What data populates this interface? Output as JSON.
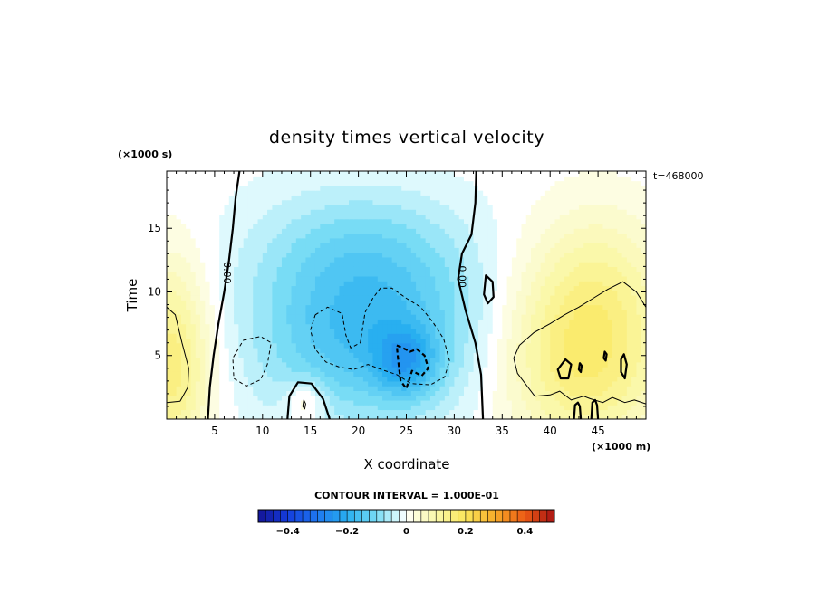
{
  "chart_data": {
    "type": "heatmap",
    "title": "density times vertical velocity",
    "xlabel": "X coordinate",
    "ylabel": "Time",
    "x_unit": "(×1000 m)",
    "y_unit": "(×1000 s)",
    "time_label": "t=468000",
    "xlim": [
      0,
      50
    ],
    "ylim": [
      0,
      19.5
    ],
    "x_ticks": [
      "5",
      "10",
      "15",
      "20",
      "25",
      "30",
      "35",
      "40",
      "45"
    ],
    "y_ticks": [
      "5",
      "10",
      "15"
    ],
    "contour_interval_text": "CONTOUR INTERVAL = 1.000E-01",
    "contour_labels": [
      {
        "text": "0.00",
        "x": 6.3,
        "y": 11.5
      },
      {
        "text": "0.00",
        "x": 30.8,
        "y": 11.2
      }
    ],
    "colorbar": {
      "range": [
        -0.5,
        0.5
      ],
      "ticks": [
        "−0.4",
        "−0.2",
        "0",
        "0.2",
        "0.4"
      ],
      "tick_values": [
        -0.4,
        -0.2,
        0,
        0.2,
        0.4
      ]
    },
    "field": {
      "background": 0.0,
      "features": [
        {
          "name": "left-warm-cell",
          "x": 0.5,
          "y": 4.5,
          "sx": 3.0,
          "sy": 5.5,
          "amp": 0.16
        },
        {
          "name": "central-updraft-deficit",
          "x": 21.0,
          "y": 7.0,
          "sx": 8.5,
          "sy": 5.0,
          "amp": -0.17
        },
        {
          "name": "central-core",
          "x": 25.0,
          "y": 4.5,
          "sx": 2.2,
          "sy": 1.8,
          "amp": -0.12
        },
        {
          "name": "upper-tongue",
          "x": 20.0,
          "y": 14.0,
          "sx": 8.0,
          "sy": 3.5,
          "amp": -0.06
        },
        {
          "name": "lower-warm-bubble",
          "x": 14.5,
          "y": 1.4,
          "sx": 1.5,
          "sy": 1.2,
          "amp": 0.08
        },
        {
          "name": "right-warm-cell",
          "x": 43.5,
          "y": 5.0,
          "sx": 6.0,
          "sy": 5.0,
          "amp": 0.17
        },
        {
          "name": "right-upper-lobe",
          "x": 45.0,
          "y": 12.0,
          "sx": 5.0,
          "sy": 4.0,
          "amp": 0.06
        }
      ]
    },
    "contours": [
      {
        "name": "zero-contour-left",
        "value": 0.0,
        "style": "solid-thick",
        "points": [
          [
            7.6,
            19.5
          ],
          [
            7.2,
            17.5
          ],
          [
            6.9,
            15.0
          ],
          [
            6.5,
            12.5
          ],
          [
            6.0,
            10.0
          ],
          [
            5.4,
            7.5
          ],
          [
            4.9,
            5.0
          ],
          [
            4.5,
            2.5
          ],
          [
            4.3,
            0.0
          ]
        ]
      },
      {
        "name": "zero-contour-right",
        "value": 0.0,
        "style": "solid-thick",
        "points": [
          [
            32.3,
            19.5
          ],
          [
            32.2,
            17.0
          ],
          [
            31.8,
            14.5
          ],
          [
            30.8,
            13.0
          ],
          [
            30.4,
            11.0
          ],
          [
            31.2,
            8.5
          ],
          [
            32.2,
            6.0
          ],
          [
            32.8,
            3.5
          ],
          [
            33.0,
            0.0
          ]
        ]
      },
      {
        "name": "zero-contour-bubble",
        "value": 0.0,
        "style": "solid-thick",
        "points": [
          [
            12.6,
            0.0
          ],
          [
            12.8,
            1.8
          ],
          [
            13.7,
            2.9
          ],
          [
            15.1,
            2.8
          ],
          [
            16.3,
            1.6
          ],
          [
            17.0,
            0.0
          ]
        ]
      },
      {
        "name": "zero-contour-islet",
        "value": 0.0,
        "style": "solid-thick",
        "closed": true,
        "points": [
          [
            33.3,
            11.3
          ],
          [
            34.0,
            10.8
          ],
          [
            34.1,
            9.6
          ],
          [
            33.5,
            9.1
          ],
          [
            33.1,
            9.8
          ]
        ]
      },
      {
        "name": "neg-0.1-left",
        "value": -0.1,
        "style": "dashed",
        "points": [
          [
            8.0,
            6.2
          ],
          [
            9.8,
            6.5
          ],
          [
            10.9,
            6.0
          ],
          [
            10.5,
            4.3
          ],
          [
            9.8,
            3.1
          ],
          [
            8.3,
            2.6
          ],
          [
            7.0,
            3.2
          ],
          [
            6.9,
            4.8
          ],
          [
            8.0,
            6.2
          ]
        ]
      },
      {
        "name": "neg-0.1-center",
        "value": -0.1,
        "style": "dashed",
        "points": [
          [
            15.5,
            8.2
          ],
          [
            16.8,
            8.8
          ],
          [
            18.3,
            8.3
          ],
          [
            18.7,
            6.6
          ],
          [
            19.2,
            5.6
          ],
          [
            20.2,
            6.0
          ],
          [
            20.7,
            8.4
          ],
          [
            21.5,
            9.5
          ],
          [
            22.3,
            10.3
          ],
          [
            23.5,
            10.3
          ],
          [
            25.0,
            9.5
          ],
          [
            26.5,
            8.8
          ],
          [
            27.8,
            7.6
          ],
          [
            28.9,
            6.3
          ],
          [
            29.5,
            4.6
          ],
          [
            29.0,
            3.3
          ],
          [
            27.5,
            2.7
          ],
          [
            25.5,
            2.8
          ],
          [
            24.0,
            3.5
          ],
          [
            22.4,
            3.9
          ],
          [
            21.0,
            4.3
          ],
          [
            19.5,
            3.9
          ],
          [
            18.0,
            4.1
          ],
          [
            16.6,
            4.5
          ],
          [
            15.5,
            5.5
          ],
          [
            15.0,
            7.0
          ],
          [
            15.5,
            8.2
          ]
        ]
      },
      {
        "name": "neg-0.2-core",
        "value": -0.2,
        "style": "dashed-thick",
        "points": [
          [
            24.0,
            5.8
          ],
          [
            24.9,
            5.5
          ],
          [
            25.4,
            5.3
          ],
          [
            26.1,
            5.5
          ],
          [
            26.9,
            5.0
          ],
          [
            27.3,
            4.0
          ],
          [
            26.6,
            3.4
          ],
          [
            25.6,
            3.8
          ],
          [
            25.0,
            2.4
          ],
          [
            24.4,
            3.0
          ],
          [
            24.2,
            4.3
          ],
          [
            24.0,
            5.8
          ]
        ]
      },
      {
        "name": "pos-0.1-left",
        "value": 0.1,
        "style": "solid",
        "points": [
          [
            0.0,
            8.8
          ],
          [
            0.9,
            8.2
          ],
          [
            1.6,
            6.0
          ],
          [
            2.3,
            4.0
          ],
          [
            2.2,
            2.5
          ],
          [
            1.4,
            1.4
          ],
          [
            0.0,
            1.3
          ]
        ]
      },
      {
        "name": "pos-0.1-right",
        "value": 0.1,
        "style": "solid",
        "points": [
          [
            50.0,
            8.8
          ],
          [
            49.0,
            10.0
          ],
          [
            47.6,
            10.8
          ],
          [
            46.0,
            10.2
          ],
          [
            44.5,
            9.5
          ],
          [
            43.0,
            8.8
          ],
          [
            41.5,
            8.2
          ],
          [
            40.0,
            7.5
          ],
          [
            38.3,
            6.8
          ],
          [
            36.8,
            5.8
          ],
          [
            36.2,
            4.8
          ],
          [
            36.6,
            3.6
          ],
          [
            37.6,
            2.6
          ],
          [
            38.4,
            1.8
          ],
          [
            40.0,
            1.9
          ],
          [
            41.0,
            2.2
          ],
          [
            42.2,
            1.5
          ],
          [
            43.5,
            1.8
          ],
          [
            44.2,
            1.6
          ],
          [
            45.5,
            1.3
          ],
          [
            46.5,
            1.7
          ],
          [
            47.8,
            1.3
          ],
          [
            48.8,
            1.5
          ],
          [
            50.0,
            1.2
          ]
        ]
      },
      {
        "name": "pos-0.2-islet-a",
        "value": 0.2,
        "style": "solid-thick",
        "closed": true,
        "points": [
          [
            40.8,
            3.9
          ],
          [
            41.6,
            4.7
          ],
          [
            42.2,
            4.3
          ],
          [
            41.9,
            3.2
          ],
          [
            41.1,
            3.2
          ]
        ]
      },
      {
        "name": "pos-0.2-islet-b",
        "value": 0.2,
        "style": "solid-thick",
        "closed": true,
        "points": [
          [
            47.7,
            5.1
          ],
          [
            48.0,
            4.3
          ],
          [
            47.8,
            3.2
          ],
          [
            47.4,
            3.7
          ],
          [
            47.4,
            4.7
          ]
        ]
      },
      {
        "name": "pos-0.2-sliver-a",
        "value": 0.2,
        "style": "solid-thick",
        "closed": true,
        "points": [
          [
            43.1,
            4.4
          ],
          [
            43.3,
            4.2
          ],
          [
            43.2,
            3.7
          ],
          [
            43.0,
            3.9
          ]
        ]
      },
      {
        "name": "pos-0.2-sliver-b",
        "value": 0.2,
        "style": "solid-thick",
        "closed": true,
        "points": [
          [
            45.7,
            5.3
          ],
          [
            45.9,
            5.1
          ],
          [
            45.8,
            4.6
          ],
          [
            45.6,
            4.8
          ]
        ]
      },
      {
        "name": "pos-0.2-base-a",
        "value": 0.2,
        "style": "solid-thick",
        "points": [
          [
            42.5,
            0.0
          ],
          [
            42.6,
            1.1
          ],
          [
            42.9,
            1.3
          ],
          [
            43.1,
            1.0
          ],
          [
            43.2,
            0.0
          ]
        ]
      },
      {
        "name": "pos-0.2-base-b",
        "value": 0.2,
        "style": "solid-thick",
        "points": [
          [
            44.3,
            0.0
          ],
          [
            44.4,
            1.3
          ],
          [
            44.7,
            1.5
          ],
          [
            44.9,
            1.1
          ],
          [
            45.0,
            0.0
          ]
        ]
      },
      {
        "name": "pos-0.1-bubble-core",
        "value": 0.1,
        "style": "solid",
        "closed": true,
        "points": [
          [
            14.3,
            1.5
          ],
          [
            14.5,
            1.2
          ],
          [
            14.4,
            0.8
          ],
          [
            14.2,
            1.0
          ]
        ]
      }
    ]
  }
}
